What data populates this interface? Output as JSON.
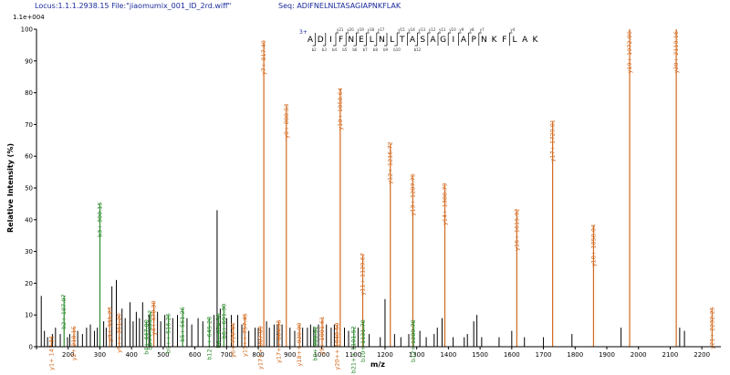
{
  "header": {
    "locus": "Locus:1.1.1.2938.15 File:\"jiaomumix_001_ID_2rd.wiff\"",
    "seq": "Seq: ADIFNELNLTASAGIAPNKFLAK",
    "scale": "1.1e+004"
  },
  "colors": {
    "b_ion": "#2e8b2e",
    "y_ion": "#d2691e",
    "unassigned": "#000000",
    "header_text": "#1a2a9a"
  },
  "chart_data": {
    "type": "bar",
    "xlabel": "m/z",
    "ylabel": "Relative Intensity (%)",
    "xlim": [
      100,
      2260
    ],
    "ylim": [
      0,
      100
    ],
    "x_ticks": [
      100,
      200,
      300,
      400,
      500,
      600,
      700,
      800,
      900,
      1000,
      1100,
      1200,
      1300,
      1400,
      1500,
      1600,
      1700,
      1800,
      1900,
      2000,
      2100,
      2200
    ],
    "y_ticks": [
      0,
      10,
      20,
      30,
      40,
      50,
      60,
      70,
      80,
      90,
      100
    ],
    "peptide": {
      "charge": "3+",
      "sequence": [
        "A",
        "D",
        "I",
        "F",
        "N",
        "E",
        "L",
        "N",
        "L",
        "T",
        "A",
        "S",
        "A",
        "G",
        "I",
        "A",
        "P",
        "N",
        "K",
        "F",
        "L",
        "A",
        "K"
      ],
      "b_indices": [
        "b2",
        "b3",
        "b4",
        "b5",
        "b6",
        "b7",
        "b8",
        "b9",
        "b10",
        "",
        "b12",
        "",
        "",
        "",
        "",
        "",
        "",
        "",
        "",
        "",
        "",
        "",
        ""
      ],
      "y_indices": [
        "",
        "",
        "y21",
        "y20",
        "y19",
        "y18",
        "y17",
        "",
        "y15",
        "y14",
        "y13",
        "y12",
        "y11",
        "y10",
        "y9",
        "y8",
        "y7",
        "",
        "",
        "y4",
        "",
        "",
        ""
      ]
    },
    "labeled_peaks": [
      {
        "mz": 147.11,
        "rel": 3,
        "ion": "y",
        "label": "y1+ 147.11"
      },
      {
        "mz": 187.07,
        "rel": 16,
        "ion": "b",
        "label": "b2+ 187.07"
      },
      {
        "mz": 218.15,
        "rel": 6,
        "ion": "y",
        "label": "y2+ 218.15"
      },
      {
        "mz": 300.15,
        "rel": 45,
        "ion": "b",
        "label": "b3+ 300.15"
      },
      {
        "mz": 331.23,
        "rel": 12,
        "ion": "y",
        "label": "y3+ 331.23"
      },
      {
        "mz": 361.2,
        "rel": 10,
        "ion": "y",
        "label": "y6++ 361.20"
      },
      {
        "mz": 447.0,
        "rel": 8,
        "ion": "b",
        "label": "b4+ 447.00"
      },
      {
        "mz": 459.22,
        "rel": 11,
        "ion": "b",
        "label": "b8++ 459.22"
      },
      {
        "mz": 470.3,
        "rel": 14,
        "ion": "y",
        "label": "y4+ 470.30"
      },
      {
        "mz": 516.26,
        "rel": 10,
        "ion": "b",
        "label": "b9++ 516.26"
      },
      {
        "mz": 561.26,
        "rel": 12,
        "ion": "b",
        "label": "b5+ 561.26"
      },
      {
        "mz": 645.28,
        "rel": 9,
        "ion": "b",
        "label": "b12++ 645.28"
      },
      {
        "mz": 674.3,
        "rel": 10,
        "ion": "b",
        "label": "b6+ 674.30"
      },
      {
        "mz": 691.3,
        "rel": 13,
        "ion": "b",
        "label": "b6+ 691.30"
      },
      {
        "mz": 720.44,
        "rel": 7,
        "ion": "y",
        "label": "y6+ 720.44"
      },
      {
        "mz": 757.45,
        "rel": 10,
        "ion": "y",
        "label": "y15++ 757.45"
      },
      {
        "mz": 807.09,
        "rel": 6,
        "ion": "y",
        "label": "y17++ 807.09"
      },
      {
        "mz": 817.49,
        "rel": 96,
        "ion": "y",
        "label": "y7+ 817.49"
      },
      {
        "mz": 864.95,
        "rel": 8,
        "ion": "y",
        "label": "y17++ 864.95"
      },
      {
        "mz": 888.53,
        "rel": 76,
        "ion": "y",
        "label": "y8+ 888.53"
      },
      {
        "mz": 929.99,
        "rel": 7,
        "ion": "y",
        "label": "y18++ 929.99"
      },
      {
        "mz": 980.52,
        "rel": 6,
        "ion": "b",
        "label": "b9+ 980.52"
      },
      {
        "mz": 1001.61,
        "rel": 9,
        "ion": "y",
        "label": "y9+ 1001.61"
      },
      {
        "mz": 1048.5,
        "rel": 7,
        "ion": "y",
        "label": "y20++ 1048.50"
      },
      {
        "mz": 1058.64,
        "rel": 81,
        "ion": "y",
        "label": "y10+ 1058.64"
      },
      {
        "mz": 1101.52,
        "rel": 6,
        "ion": "b",
        "label": "b21++ 1101.52"
      },
      {
        "mz": 1129.67,
        "rel": 29,
        "ion": "y",
        "label": "y11+ 1129.67"
      },
      {
        "mz": 1131.7,
        "rel": 8,
        "ion": "b",
        "label": "b10+ 1131.70"
      },
      {
        "mz": 1216.72,
        "rel": 64,
        "ion": "y",
        "label": "y12+ 1216.72"
      },
      {
        "mz": 1287.75,
        "rel": 54,
        "ion": "y",
        "label": "y13+ 1287.75"
      },
      {
        "mz": 1289.78,
        "rel": 8,
        "ion": "b",
        "label": "b12+ 1289.78"
      },
      {
        "mz": 1388.79,
        "rel": 51,
        "ion": "y",
        "label": "y14+ 1388.79"
      },
      {
        "mz": 1615.92,
        "rel": 43,
        "ion": "y",
        "label": "y16+ 1615.92"
      },
      {
        "mz": 1729.01,
        "rel": 71,
        "ion": "y",
        "label": "y17+ 1729.01"
      },
      {
        "mz": 1858.04,
        "rel": 38,
        "ion": "y",
        "label": "y18+ 1858.04"
      },
      {
        "mz": 1972.09,
        "rel": 100,
        "ion": "y",
        "label": "y19+ 1972.09"
      },
      {
        "mz": 2119.16,
        "rel": 100,
        "ion": "y",
        "label": "y20+ 2119.16"
      },
      {
        "mz": 2232.25,
        "rel": 12,
        "ion": "y",
        "label": "y21+ 2232.25"
      }
    ],
    "unlabeled_peaks": [
      [
        115,
        16
      ],
      [
        125,
        5
      ],
      [
        135,
        3
      ],
      [
        150,
        4
      ],
      [
        160,
        6
      ],
      [
        175,
        4
      ],
      [
        198,
        3
      ],
      [
        205,
        4
      ],
      [
        230,
        5
      ],
      [
        245,
        4
      ],
      [
        258,
        6
      ],
      [
        270,
        7
      ],
      [
        283,
        5
      ],
      [
        292,
        6
      ],
      [
        312,
        8
      ],
      [
        320,
        6
      ],
      [
        338,
        19
      ],
      [
        352,
        21
      ],
      [
        370,
        12
      ],
      [
        380,
        9
      ],
      [
        395,
        14
      ],
      [
        405,
        8
      ],
      [
        415,
        11
      ],
      [
        425,
        9
      ],
      [
        435,
        14
      ],
      [
        455,
        10
      ],
      [
        482,
        11
      ],
      [
        492,
        8
      ],
      [
        505,
        10
      ],
      [
        530,
        9
      ],
      [
        545,
        10
      ],
      [
        575,
        9
      ],
      [
        590,
        7
      ],
      [
        610,
        9
      ],
      [
        625,
        8
      ],
      [
        660,
        10
      ],
      [
        670,
        43
      ],
      [
        680,
        12
      ],
      [
        700,
        9
      ],
      [
        715,
        10
      ],
      [
        735,
        10
      ],
      [
        748,
        7
      ],
      [
        770,
        5
      ],
      [
        790,
        6
      ],
      [
        800,
        6
      ],
      [
        826,
        8
      ],
      [
        835,
        6
      ],
      [
        850,
        7
      ],
      [
        860,
        7
      ],
      [
        875,
        7
      ],
      [
        900,
        6
      ],
      [
        915,
        5
      ],
      [
        940,
        6
      ],
      [
        955,
        6
      ],
      [
        965,
        7
      ],
      [
        975,
        6
      ],
      [
        990,
        7
      ],
      [
        1015,
        7
      ],
      [
        1030,
        6
      ],
      [
        1040,
        7
      ],
      [
        1072,
        6
      ],
      [
        1085,
        5
      ],
      [
        1115,
        6
      ],
      [
        1150,
        4
      ],
      [
        1185,
        3
      ],
      [
        1200,
        15
      ],
      [
        1230,
        4
      ],
      [
        1250,
        3
      ],
      [
        1275,
        4
      ],
      [
        1310,
        5
      ],
      [
        1330,
        3
      ],
      [
        1355,
        4
      ],
      [
        1365,
        6
      ],
      [
        1380,
        9
      ],
      [
        1415,
        3
      ],
      [
        1450,
        3
      ],
      [
        1460,
        4
      ],
      [
        1480,
        8
      ],
      [
        1490,
        10
      ],
      [
        1505,
        3
      ],
      [
        1560,
        3
      ],
      [
        1600,
        5
      ],
      [
        1640,
        3
      ],
      [
        1700,
        3
      ],
      [
        1790,
        4
      ],
      [
        1945,
        6
      ],
      [
        2130,
        6
      ],
      [
        2145,
        5
      ]
    ]
  }
}
